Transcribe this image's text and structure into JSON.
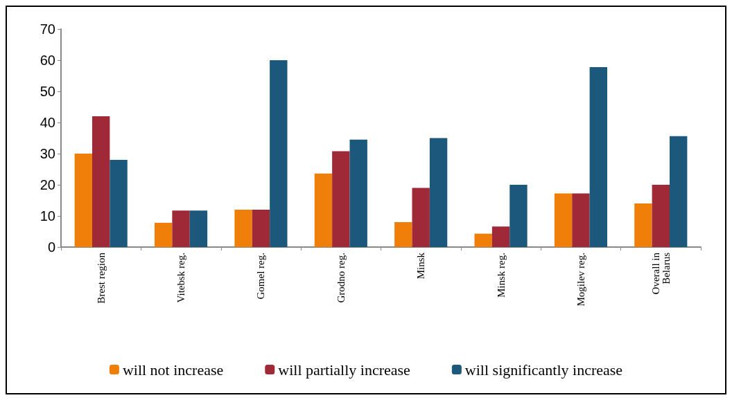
{
  "chart_data": {
    "type": "bar",
    "categories": [
      "Brest region",
      "Vitebsk reg.",
      "Gomel reg.",
      "Grodno reg.",
      "Minsk",
      "Minsk reg.",
      "Mogilev reg.",
      "Overall in\nBelarus"
    ],
    "series": [
      {
        "name": "will not increase",
        "color": "#f07f09",
        "values": [
          30,
          7.8,
          12,
          23.6,
          8,
          4.3,
          17.2,
          14
        ]
      },
      {
        "name": "will partially increase",
        "color": "#9f2936",
        "values": [
          42,
          11.7,
          12,
          30.8,
          19,
          6.6,
          17.2,
          20
        ]
      },
      {
        "name": "will significantly increase",
        "color": "#1b587c",
        "values": [
          28,
          11.7,
          60,
          34.5,
          35,
          20,
          57.8,
          35.6
        ]
      }
    ],
    "ylim": [
      0,
      70
    ],
    "yticks": [
      0,
      10,
      20,
      30,
      40,
      50,
      60,
      70
    ],
    "grid": false,
    "legend": "bottom"
  }
}
